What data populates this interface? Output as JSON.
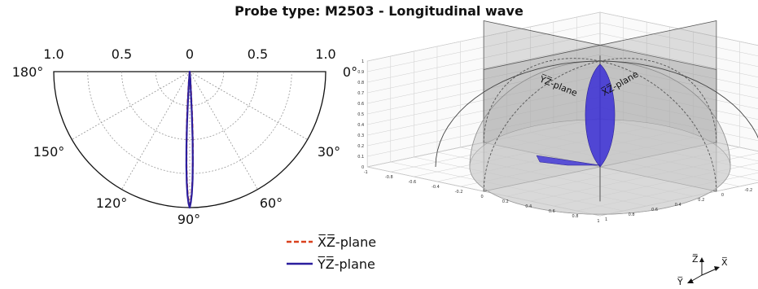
{
  "title": "Probe type: M2503 - Longitudinal wave",
  "chart_data": [
    {
      "type": "polar-line",
      "title": "",
      "radial_ticks": [
        "1.0",
        "0.5",
        "0",
        "0.5",
        "1.0"
      ],
      "angle_ticks": [
        "180°",
        "150°",
        "120°",
        "90°",
        "60°",
        "30°",
        "0°"
      ],
      "rlim": [
        0,
        1.0
      ],
      "angle_range": [
        0,
        180
      ],
      "grid": true,
      "legend_position": "bottom-right",
      "series": [
        {
          "name": "X̅Z̅-plane",
          "color": "#d9411e",
          "style": "dashed",
          "angles": [
            85,
            86,
            86.5,
            87,
            87.5,
            88,
            88.5,
            89,
            89.5,
            90,
            90.5,
            91,
            91.5,
            92,
            92.5,
            93,
            93.5,
            94,
            94.5,
            95
          ],
          "values": [
            0.05,
            0.12,
            0.2,
            0.35,
            0.52,
            0.66,
            0.79,
            0.88,
            0.95,
            1.0,
            0.96,
            0.89,
            0.8,
            0.68,
            0.54,
            0.4,
            0.28,
            0.18,
            0.1,
            0.05
          ]
        },
        {
          "name": "Y̅Z̅-plane",
          "color": "#2b1e9e",
          "style": "solid",
          "angles": [
            85.5,
            86.5,
            87,
            87.5,
            88,
            88.5,
            89,
            89.5,
            90,
            90.5,
            91,
            91.5,
            92,
            92.5,
            93,
            93.5,
            94.5
          ],
          "values": [
            0.05,
            0.12,
            0.3,
            0.5,
            0.66,
            0.8,
            0.9,
            0.96,
            1.0,
            0.97,
            0.91,
            0.82,
            0.7,
            0.55,
            0.38,
            0.22,
            0.08
          ]
        }
      ]
    },
    {
      "type": "3d-surface",
      "title": "",
      "plane_labels": [
        "Y̅Z̅-plane",
        "X̅Z̅-plane"
      ],
      "axis_labels": [
        "Z̅",
        "X̅",
        "Y̅"
      ],
      "vertical_ticks": [
        "0",
        "0.1",
        "0.2",
        "0.3",
        "0.4",
        "0.5",
        "0.6",
        "0.7",
        "0.8",
        "0.9",
        "1"
      ],
      "horizontal_ticks": [
        "-1",
        "-0.8",
        "-0.6",
        "-0.4",
        "-0.2",
        "0",
        "0.2",
        "0.4",
        "0.6",
        "0.8",
        "1"
      ],
      "lobe_color": "#3b2fd6"
    }
  ]
}
